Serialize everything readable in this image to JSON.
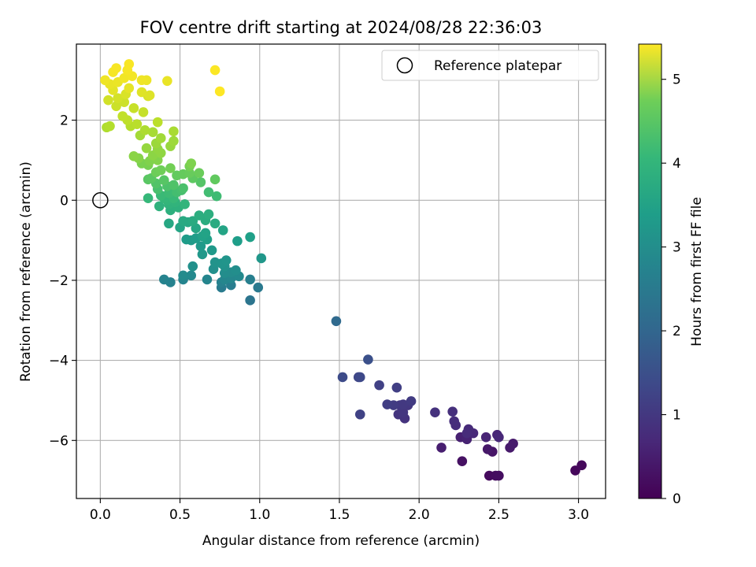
{
  "chart_data": {
    "type": "scatter",
    "title": "FOV centre drift starting at 2024/08/28 22:36:03",
    "xlabel": "Angular distance from reference (arcmin)",
    "ylabel": "Rotation from reference (arcmin)",
    "xlim": [
      -0.15,
      3.17
    ],
    "ylim": [
      -7.45,
      3.9
    ],
    "xticks": [
      0.0,
      0.5,
      1.0,
      1.5,
      2.0,
      2.5,
      3.0
    ],
    "xtick_labels": [
      "0.0",
      "0.5",
      "1.0",
      "1.5",
      "2.0",
      "2.5",
      "3.0"
    ],
    "yticks": [
      2,
      0,
      -2,
      -4,
      -6
    ],
    "ytick_labels": [
      "2",
      "0",
      "−2",
      "−4",
      "−6"
    ],
    "grid": true,
    "legend": {
      "placement": "top-right",
      "label": "Reference platepar"
    },
    "reference_point": {
      "x": 0.0,
      "y": 0.0
    },
    "colorbar": {
      "label": "Hours from first FF file",
      "min": 0,
      "max": 5.42,
      "ticks": [
        0,
        1,
        2,
        3,
        4,
        5
      ],
      "tick_labels": [
        "0",
        "1",
        "2",
        "3",
        "4",
        "5"
      ],
      "colormap": "viridis"
    },
    "points": [
      {
        "x": 2.98,
        "y": -6.75,
        "c": 0.1
      },
      {
        "x": 3.02,
        "y": -6.62,
        "c": 0.12
      },
      {
        "x": 2.44,
        "y": -6.88,
        "c": 0.15
      },
      {
        "x": 2.48,
        "y": -6.88,
        "c": 0.18
      },
      {
        "x": 2.5,
        "y": -6.88,
        "c": 0.2
      },
      {
        "x": 2.27,
        "y": -6.52,
        "c": 0.25
      },
      {
        "x": 2.46,
        "y": -6.28,
        "c": 0.3
      },
      {
        "x": 2.43,
        "y": -6.22,
        "c": 0.35
      },
      {
        "x": 2.57,
        "y": -6.18,
        "c": 0.38
      },
      {
        "x": 2.59,
        "y": -6.08,
        "c": 0.4
      },
      {
        "x": 2.14,
        "y": -6.18,
        "c": 0.45
      },
      {
        "x": 2.26,
        "y": -5.92,
        "c": 0.48
      },
      {
        "x": 2.29,
        "y": -5.92,
        "c": 0.5
      },
      {
        "x": 2.3,
        "y": -5.97,
        "c": 0.52
      },
      {
        "x": 2.42,
        "y": -5.92,
        "c": 0.55
      },
      {
        "x": 2.49,
        "y": -5.86,
        "c": 0.57
      },
      {
        "x": 2.5,
        "y": -5.92,
        "c": 0.6
      },
      {
        "x": 2.34,
        "y": -5.82,
        "c": 0.62
      },
      {
        "x": 2.31,
        "y": -5.72,
        "c": 0.65
      },
      {
        "x": 2.3,
        "y": -5.82,
        "c": 0.67
      },
      {
        "x": 2.23,
        "y": -5.62,
        "c": 0.7
      },
      {
        "x": 2.22,
        "y": -5.52,
        "c": 0.72
      },
      {
        "x": 2.21,
        "y": -5.28,
        "c": 0.75
      },
      {
        "x": 2.1,
        "y": -5.3,
        "c": 0.78
      },
      {
        "x": 1.91,
        "y": -5.45,
        "c": 0.8
      },
      {
        "x": 1.87,
        "y": -5.35,
        "c": 0.82
      },
      {
        "x": 1.9,
        "y": -5.3,
        "c": 0.85
      },
      {
        "x": 1.93,
        "y": -5.12,
        "c": 0.87
      },
      {
        "x": 1.88,
        "y": -5.12,
        "c": 0.9
      },
      {
        "x": 1.9,
        "y": -5.1,
        "c": 0.92
      },
      {
        "x": 1.95,
        "y": -5.02,
        "c": 0.95
      },
      {
        "x": 1.84,
        "y": -5.12,
        "c": 0.97
      },
      {
        "x": 1.8,
        "y": -5.1,
        "c": 1.0
      },
      {
        "x": 1.86,
        "y": -4.68,
        "c": 1.02
      },
      {
        "x": 1.75,
        "y": -4.62,
        "c": 1.05
      },
      {
        "x": 1.63,
        "y": -5.35,
        "c": 1.08
      },
      {
        "x": 1.62,
        "y": -4.42,
        "c": 1.15
      },
      {
        "x": 1.63,
        "y": -4.42,
        "c": 1.2
      },
      {
        "x": 1.52,
        "y": -4.42,
        "c": 1.25
      },
      {
        "x": 1.68,
        "y": -3.98,
        "c": 1.35
      },
      {
        "x": 1.48,
        "y": -3.02,
        "c": 1.85
      },
      {
        "x": 0.94,
        "y": -2.5,
        "c": 2.1
      },
      {
        "x": 0.99,
        "y": -2.18,
        "c": 2.2
      },
      {
        "x": 0.76,
        "y": -2.18,
        "c": 2.25
      },
      {
        "x": 0.82,
        "y": -2.12,
        "c": 2.3
      },
      {
        "x": 0.94,
        "y": -1.98,
        "c": 2.35
      },
      {
        "x": 0.76,
        "y": -2.05,
        "c": 2.38
      },
      {
        "x": 0.44,
        "y": -2.05,
        "c": 2.4
      },
      {
        "x": 0.4,
        "y": -1.98,
        "c": 2.42
      },
      {
        "x": 0.52,
        "y": -1.98,
        "c": 2.45
      },
      {
        "x": 0.67,
        "y": -1.98,
        "c": 2.47
      },
      {
        "x": 0.78,
        "y": -1.98,
        "c": 2.5
      },
      {
        "x": 0.82,
        "y": -1.95,
        "c": 2.52
      },
      {
        "x": 0.87,
        "y": -1.9,
        "c": 2.55
      },
      {
        "x": 0.57,
        "y": -1.88,
        "c": 2.57
      },
      {
        "x": 0.52,
        "y": -1.88,
        "c": 2.6
      },
      {
        "x": 0.82,
        "y": -1.8,
        "c": 2.62
      },
      {
        "x": 0.78,
        "y": -1.82,
        "c": 2.65
      },
      {
        "x": 0.85,
        "y": -1.75,
        "c": 2.67
      },
      {
        "x": 0.71,
        "y": -1.72,
        "c": 2.7
      },
      {
        "x": 0.58,
        "y": -1.65,
        "c": 2.72
      },
      {
        "x": 0.78,
        "y": -1.65,
        "c": 2.75
      },
      {
        "x": 0.72,
        "y": -1.55,
        "c": 2.78
      },
      {
        "x": 0.76,
        "y": -1.58,
        "c": 2.8
      },
      {
        "x": 0.79,
        "y": -1.5,
        "c": 2.82
      },
      {
        "x": 1.01,
        "y": -1.45,
        "c": 2.85
      },
      {
        "x": 0.64,
        "y": -1.35,
        "c": 2.88
      },
      {
        "x": 0.7,
        "y": -1.25,
        "c": 2.9
      },
      {
        "x": 0.63,
        "y": -1.15,
        "c": 2.92
      },
      {
        "x": 0.57,
        "y": -1.0,
        "c": 2.95
      },
      {
        "x": 0.54,
        "y": -0.98,
        "c": 2.97
      },
      {
        "x": 0.6,
        "y": -0.95,
        "c": 3.0
      },
      {
        "x": 0.86,
        "y": -1.02,
        "c": 3.02
      },
      {
        "x": 0.94,
        "y": -0.92,
        "c": 3.05
      },
      {
        "x": 0.67,
        "y": -0.98,
        "c": 3.07
      },
      {
        "x": 0.64,
        "y": -0.9,
        "c": 3.1
      },
      {
        "x": 0.66,
        "y": -0.82,
        "c": 3.12
      },
      {
        "x": 0.77,
        "y": -0.75,
        "c": 3.15
      },
      {
        "x": 0.5,
        "y": -0.68,
        "c": 3.17
      },
      {
        "x": 0.6,
        "y": -0.7,
        "c": 3.2
      },
      {
        "x": 0.43,
        "y": -0.58,
        "c": 3.22
      },
      {
        "x": 0.55,
        "y": -0.55,
        "c": 3.25
      },
      {
        "x": 0.52,
        "y": -0.52,
        "c": 3.28
      },
      {
        "x": 0.58,
        "y": -0.52,
        "c": 3.3
      },
      {
        "x": 0.72,
        "y": -0.58,
        "c": 3.32
      },
      {
        "x": 0.66,
        "y": -0.5,
        "c": 3.35
      },
      {
        "x": 0.62,
        "y": -0.38,
        "c": 3.38
      },
      {
        "x": 0.68,
        "y": -0.35,
        "c": 3.4
      },
      {
        "x": 0.44,
        "y": -0.25,
        "c": 3.42
      },
      {
        "x": 0.49,
        "y": -0.18,
        "c": 3.45
      },
      {
        "x": 0.37,
        "y": -0.15,
        "c": 3.47
      },
      {
        "x": 0.43,
        "y": -0.1,
        "c": 3.5
      },
      {
        "x": 0.47,
        "y": -0.05,
        "c": 3.52
      },
      {
        "x": 0.53,
        "y": -0.1,
        "c": 3.55
      },
      {
        "x": 0.42,
        "y": 0.0,
        "c": 3.57
      },
      {
        "x": 0.4,
        "y": 0.05,
        "c": 3.6
      },
      {
        "x": 0.3,
        "y": 0.05,
        "c": 3.62
      },
      {
        "x": 0.46,
        "y": 0.05,
        "c": 3.65
      },
      {
        "x": 0.38,
        "y": 0.12,
        "c": 3.67
      },
      {
        "x": 0.43,
        "y": 0.18,
        "c": 3.7
      },
      {
        "x": 0.73,
        "y": 0.1,
        "c": 3.72
      },
      {
        "x": 0.68,
        "y": 0.2,
        "c": 3.75
      },
      {
        "x": 0.48,
        "y": 0.2,
        "c": 3.77
      },
      {
        "x": 0.51,
        "y": 0.25,
        "c": 3.8
      },
      {
        "x": 0.36,
        "y": 0.28,
        "c": 3.82
      },
      {
        "x": 0.52,
        "y": 0.3,
        "c": 3.85
      },
      {
        "x": 0.42,
        "y": 0.35,
        "c": 3.87
      },
      {
        "x": 0.46,
        "y": 0.38,
        "c": 3.9
      },
      {
        "x": 0.35,
        "y": 0.42,
        "c": 3.92
      },
      {
        "x": 0.63,
        "y": 0.45,
        "c": 3.95
      },
      {
        "x": 0.4,
        "y": 0.5,
        "c": 3.97
      },
      {
        "x": 0.3,
        "y": 0.52,
        "c": 4.0
      },
      {
        "x": 0.32,
        "y": 0.55,
        "c": 4.02
      },
      {
        "x": 0.58,
        "y": 0.55,
        "c": 4.05
      },
      {
        "x": 0.72,
        "y": 0.52,
        "c": 4.08
      },
      {
        "x": 0.48,
        "y": 0.62,
        "c": 4.1
      },
      {
        "x": 0.52,
        "y": 0.65,
        "c": 4.12
      },
      {
        "x": 0.56,
        "y": 0.68,
        "c": 4.15
      },
      {
        "x": 0.62,
        "y": 0.68,
        "c": 4.17
      },
      {
        "x": 0.35,
        "y": 0.7,
        "c": 4.2
      },
      {
        "x": 0.38,
        "y": 0.75,
        "c": 4.22
      },
      {
        "x": 0.44,
        "y": 0.8,
        "c": 4.25
      },
      {
        "x": 0.56,
        "y": 0.85,
        "c": 4.27
      },
      {
        "x": 0.3,
        "y": 0.88,
        "c": 4.3
      },
      {
        "x": 0.26,
        "y": 0.92,
        "c": 4.32
      },
      {
        "x": 0.57,
        "y": 0.92,
        "c": 4.35
      },
      {
        "x": 0.31,
        "y": 0.98,
        "c": 4.37
      },
      {
        "x": 0.36,
        "y": 1.0,
        "c": 4.4
      },
      {
        "x": 0.24,
        "y": 1.05,
        "c": 4.42
      },
      {
        "x": 0.21,
        "y": 1.1,
        "c": 4.45
      },
      {
        "x": 0.33,
        "y": 1.12,
        "c": 4.47
      },
      {
        "x": 0.38,
        "y": 1.18,
        "c": 4.5
      },
      {
        "x": 0.36,
        "y": 1.28,
        "c": 4.52
      },
      {
        "x": 0.29,
        "y": 1.3,
        "c": 4.55
      },
      {
        "x": 0.44,
        "y": 1.35,
        "c": 4.57
      },
      {
        "x": 0.35,
        "y": 1.42,
        "c": 4.6
      },
      {
        "x": 0.46,
        "y": 1.48,
        "c": 4.62
      },
      {
        "x": 0.38,
        "y": 1.55,
        "c": 4.65
      },
      {
        "x": 0.25,
        "y": 1.62,
        "c": 4.67
      },
      {
        "x": 0.33,
        "y": 1.7,
        "c": 4.7
      },
      {
        "x": 0.46,
        "y": 1.72,
        "c": 4.72
      },
      {
        "x": 0.28,
        "y": 1.75,
        "c": 4.75
      },
      {
        "x": 0.04,
        "y": 1.82,
        "c": 4.77
      },
      {
        "x": 0.06,
        "y": 1.85,
        "c": 4.8
      },
      {
        "x": 0.19,
        "y": 1.85,
        "c": 4.82
      },
      {
        "x": 0.23,
        "y": 1.9,
        "c": 4.85
      },
      {
        "x": 0.36,
        "y": 1.95,
        "c": 4.87
      },
      {
        "x": 0.17,
        "y": 2.0,
        "c": 4.9
      },
      {
        "x": 0.14,
        "y": 2.1,
        "c": 4.92
      },
      {
        "x": 0.27,
        "y": 2.2,
        "c": 4.95
      },
      {
        "x": 0.21,
        "y": 2.3,
        "c": 4.97
      },
      {
        "x": 0.1,
        "y": 2.35,
        "c": 5.0
      },
      {
        "x": 0.15,
        "y": 2.45,
        "c": 5.02
      },
      {
        "x": 0.05,
        "y": 2.5,
        "c": 5.05
      },
      {
        "x": 0.11,
        "y": 2.55,
        "c": 5.07
      },
      {
        "x": 0.3,
        "y": 2.6,
        "c": 5.1
      },
      {
        "x": 0.16,
        "y": 2.65,
        "c": 5.12
      },
      {
        "x": 0.31,
        "y": 2.62,
        "c": 5.15
      },
      {
        "x": 0.26,
        "y": 2.7,
        "c": 5.17
      },
      {
        "x": 0.08,
        "y": 2.75,
        "c": 5.2
      },
      {
        "x": 0.18,
        "y": 2.8,
        "c": 5.22
      },
      {
        "x": 0.06,
        "y": 2.9,
        "c": 5.25
      },
      {
        "x": 0.11,
        "y": 2.95,
        "c": 5.27
      },
      {
        "x": 0.03,
        "y": 3.0,
        "c": 5.3
      },
      {
        "x": 0.15,
        "y": 3.05,
        "c": 5.32
      },
      {
        "x": 0.2,
        "y": 3.1,
        "c": 5.34
      },
      {
        "x": 0.08,
        "y": 3.2,
        "c": 5.35
      },
      {
        "x": 0.17,
        "y": 3.25,
        "c": 5.36
      },
      {
        "x": 0.1,
        "y": 3.3,
        "c": 5.37
      },
      {
        "x": 0.18,
        "y": 3.4,
        "c": 5.38
      },
      {
        "x": 0.26,
        "y": 3.0,
        "c": 5.3
      },
      {
        "x": 0.42,
        "y": 2.98,
        "c": 5.25
      },
      {
        "x": 0.29,
        "y": 3.0,
        "c": 5.28
      },
      {
        "x": 0.72,
        "y": 3.25,
        "c": 5.4
      },
      {
        "x": 0.75,
        "y": 2.72,
        "c": 5.42
      }
    ]
  }
}
